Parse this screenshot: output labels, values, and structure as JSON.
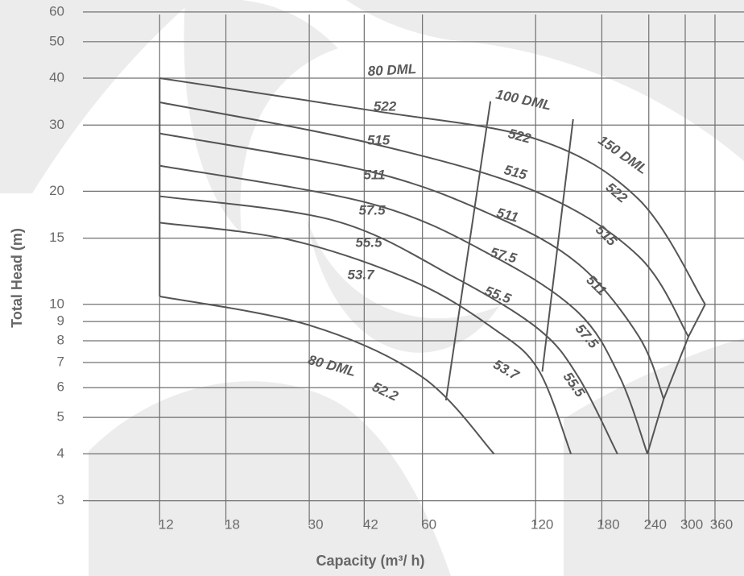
{
  "chart_data": {
    "type": "line",
    "x_label": "Capacity  (m³/  h)",
    "y_label": "Total Head  (m)",
    "log_x": true,
    "log_y": true,
    "grid": true,
    "color": "#555555",
    "xlim": [
      7.5,
      430
    ],
    "ylim": [
      2.85,
      63
    ],
    "xticks": [
      12,
      18,
      30,
      42,
      60,
      120,
      180,
      240,
      300,
      360
    ],
    "yticks": [
      3,
      4,
      5,
      6,
      7,
      8,
      9,
      10,
      15,
      20,
      30,
      40,
      50,
      60
    ],
    "models": [
      "80 DML",
      "100 DML",
      "150 DML"
    ],
    "series": [
      {
        "name": "52.2",
        "x": [
          12,
          30,
          60,
          93
        ],
        "y": [
          10.5,
          8.8,
          6.4,
          4
        ]
      },
      {
        "name": "53.7",
        "x": [
          12,
          27,
          57,
          93,
          122,
          149
        ],
        "y": [
          16.5,
          14.8,
          11.5,
          8.6,
          6.7,
          4
        ]
      },
      {
        "name": "55.5",
        "x": [
          12,
          35,
          73,
          122,
          156,
          198
        ],
        "y": [
          19.4,
          16.7,
          11.8,
          8.6,
          6.4,
          4
        ]
      },
      {
        "name": "57.5",
        "x": [
          12,
          44,
          93,
          156,
          201,
          238
        ],
        "y": [
          23.4,
          18.5,
          13.4,
          9.5,
          6.4,
          4
        ]
      },
      {
        "name": "511",
        "x": [
          12,
          44,
          93,
          156,
          226,
          263
        ],
        "y": [
          28.5,
          22.5,
          17.2,
          12.8,
          8.2,
          5.6
        ]
      },
      {
        "name": "515",
        "x": [
          12,
          44,
          121,
          226,
          306
        ],
        "y": [
          34.5,
          26.8,
          19.9,
          13.4,
          8.2
        ]
      },
      {
        "name": "522",
        "x": [
          12,
          44,
          121,
          226,
          339
        ],
        "y": [
          40,
          32.8,
          27.5,
          19,
          10
        ]
      }
    ],
    "boundaries": [
      {
        "x": [
          91,
          69.3
        ],
        "y": [
          34.7,
          5.55
        ]
      },
      {
        "x": [
          151,
          125
        ],
        "y": [
          31.1,
          6.62
        ]
      }
    ]
  }
}
